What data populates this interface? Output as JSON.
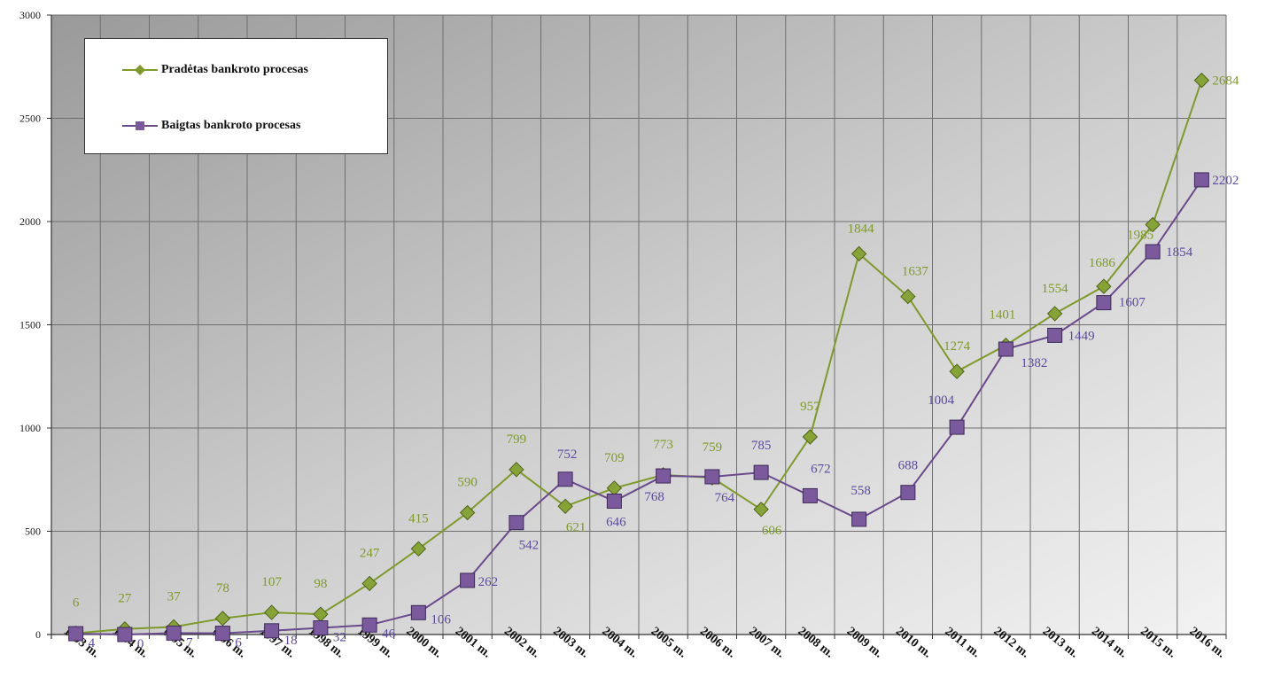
{
  "chart_data": {
    "type": "line",
    "title": "",
    "xlabel": "",
    "ylabel": "",
    "ylim": [
      0,
      3000
    ],
    "yticks": [
      0,
      500,
      1000,
      1500,
      2000,
      2500,
      3000
    ],
    "grid": true,
    "legend_position": "top-left",
    "categories": [
      "1993 m.",
      "1994 m.",
      "1995 m.",
      "1996 m.",
      "1997 m.",
      "1998 m.",
      "1999 m.",
      "2000 m.",
      "2001 m.",
      "2002 m.",
      "2003 m.",
      "2004 m.",
      "2005 m.",
      "2006 m.",
      "2007 m.",
      "2008 m.",
      "2009 m.",
      "2010 m.",
      "2011 m.",
      "2012 m.",
      "2013 m.",
      "2014 m.",
      "2015 m.",
      "2016 m."
    ],
    "series": [
      {
        "name": "Pradėtas bankroto procesas",
        "color": "#7f9a2a",
        "marker": "diamond",
        "values": [
          6,
          27,
          37,
          78,
          107,
          98,
          247,
          415,
          590,
          799,
          621,
          709,
          773,
          759,
          606,
          957,
          1844,
          1637,
          1274,
          1401,
          1554,
          1686,
          1985,
          2684
        ]
      },
      {
        "name": "Baigtas bankroto procesas",
        "color": "#6a4a8c",
        "marker": "square",
        "values": [
          4,
          0,
          7,
          6,
          18,
          32,
          46,
          106,
          262,
          542,
          752,
          646,
          768,
          764,
          785,
          672,
          558,
          688,
          1004,
          1382,
          1449,
          1607,
          1854,
          2202
        ]
      }
    ]
  }
}
